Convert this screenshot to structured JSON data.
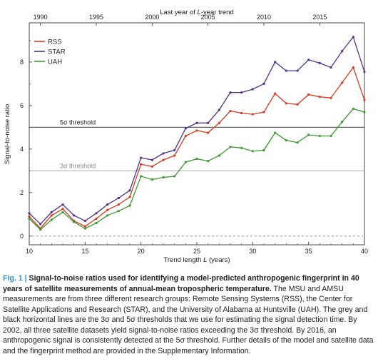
{
  "chart_data": {
    "type": "line",
    "top_axis_label_pre": "Last year of ",
    "top_axis_label_var": "L",
    "top_axis_label_post": "-year trend",
    "top_ticks": [
      "1990",
      "1995",
      "2000",
      "2005",
      "2010",
      "2015"
    ],
    "xlabel_pre": "Trend length ",
    "xlabel_var": "L",
    "xlabel_post": " (years)",
    "ylabel": "Signal-to-noise ratio",
    "x_ticks": [
      "10",
      "15",
      "20",
      "25",
      "30",
      "35",
      "40"
    ],
    "y_ticks": [
      "0",
      "2",
      "4",
      "6",
      "8"
    ],
    "xlim": [
      10,
      40
    ],
    "ylim": [
      -0.4,
      9.8
    ],
    "legend_position": "top-left",
    "threshold_3_label": "3σ threshold",
    "threshold_5_label": "5σ threshold",
    "thresholds": [
      {
        "value": 3,
        "color": "#aaaaaa"
      },
      {
        "value": 5,
        "color": "#666666"
      }
    ],
    "zero_line_color": "#888888",
    "x": [
      10,
      11,
      12,
      13,
      14,
      15,
      16,
      17,
      18,
      19,
      20,
      21,
      22,
      23,
      24,
      25,
      26,
      27,
      28,
      29,
      30,
      31,
      32,
      33,
      34,
      35,
      36,
      37,
      38,
      39,
      40
    ],
    "series": [
      {
        "name": "RSS",
        "color": "#d83a1f",
        "values": [
          0.9,
          0.35,
          0.95,
          1.25,
          0.7,
          0.45,
          0.8,
          1.2,
          1.45,
          1.8,
          3.3,
          3.2,
          3.5,
          3.7,
          4.6,
          4.85,
          4.75,
          5.2,
          5.75,
          5.65,
          5.6,
          5.7,
          6.55,
          6.1,
          6.05,
          6.5,
          6.4,
          6.35,
          7.05,
          7.75,
          6.25
        ]
      },
      {
        "name": "STAR",
        "color": "#51318e",
        "values": [
          1.05,
          0.55,
          1.1,
          1.45,
          0.95,
          0.7,
          1.05,
          1.45,
          1.75,
          2.1,
          3.6,
          3.5,
          3.8,
          3.95,
          4.95,
          5.2,
          5.2,
          5.8,
          6.6,
          6.6,
          6.75,
          7.0,
          8.0,
          7.6,
          7.6,
          8.1,
          7.95,
          7.75,
          8.5,
          9.15,
          7.55
        ]
      },
      {
        "name": "UAH",
        "color": "#3c9a2f",
        "values": [
          0.8,
          0.3,
          0.75,
          1.1,
          0.65,
          0.35,
          0.6,
          0.95,
          1.15,
          1.4,
          2.75,
          2.6,
          2.7,
          2.75,
          3.4,
          3.55,
          3.45,
          3.7,
          4.1,
          4.05,
          3.9,
          3.95,
          4.75,
          4.4,
          4.3,
          4.65,
          4.6,
          4.6,
          5.25,
          5.85,
          5.7
        ]
      }
    ]
  },
  "caption": {
    "fig_label": "Fig. 1 |",
    "title": " Signal-to-noise ratios used for identifying a model-predicted anthropogenic fingerprint in 40 years of satellite measurements of annual-mean tropospheric temperature.",
    "body": " The MSU and AMSU measurements are from three different research groups: Remote Sensing Systems (RSS), the Center for Satellite Applications and Research (STAR), and the University of Alabama at Huntsville (UAH). The grey and black horizontal lines are the 3σ and 5σ thresholds that we use for estimating the signal detection time. By 2002, all three satellite datasets yield signal-to-noise ratios exceeding the 3σ threshold. By 2016, an anthropogenic signal is consistently detected at the 5σ threshold. Further details of the model and satellite data and the fingerprint method are provided in the Supplementary Information."
  }
}
